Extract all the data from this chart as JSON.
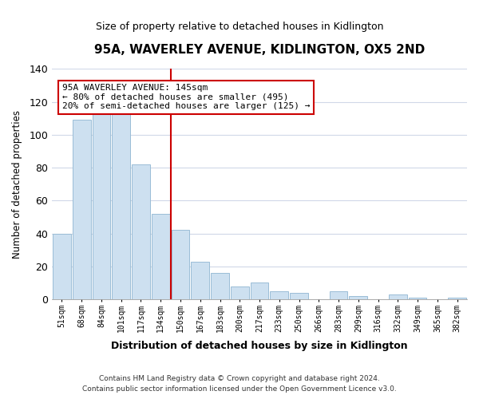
{
  "title": "95A, WAVERLEY AVENUE, KIDLINGTON, OX5 2ND",
  "subtitle": "Size of property relative to detached houses in Kidlington",
  "xlabel": "Distribution of detached houses by size in Kidlington",
  "ylabel": "Number of detached properties",
  "bar_labels": [
    "51sqm",
    "68sqm",
    "84sqm",
    "101sqm",
    "117sqm",
    "134sqm",
    "150sqm",
    "167sqm",
    "183sqm",
    "200sqm",
    "217sqm",
    "233sqm",
    "250sqm",
    "266sqm",
    "283sqm",
    "299sqm",
    "316sqm",
    "332sqm",
    "349sqm",
    "365sqm",
    "382sqm"
  ],
  "bar_values": [
    40,
    109,
    117,
    115,
    82,
    52,
    42,
    23,
    16,
    8,
    10,
    5,
    4,
    0,
    5,
    2,
    0,
    3,
    1,
    0,
    1
  ],
  "bar_color": "#cde0f0",
  "bar_edge_color": "#9abdd6",
  "vline_color": "#cc0000",
  "ylim": [
    0,
    140
  ],
  "yticks": [
    0,
    20,
    40,
    60,
    80,
    100,
    120,
    140
  ],
  "vline_index": 6,
  "annotation_line1": "95A WAVERLEY AVENUE: 145sqm",
  "annotation_line2": "← 80% of detached houses are smaller (495)",
  "annotation_line3": "20% of semi-detached houses are larger (125) →",
  "annotation_box_color": "#ffffff",
  "annotation_box_edge": "#cc0000",
  "footer_line1": "Contains HM Land Registry data © Crown copyright and database right 2024.",
  "footer_line2": "Contains public sector information licensed under the Open Government Licence v3.0.",
  "background_color": "#ffffff",
  "plot_background": "#ffffff",
  "grid_color": "#d0d8e8",
  "title_fontsize": 11,
  "subtitle_fontsize": 9
}
